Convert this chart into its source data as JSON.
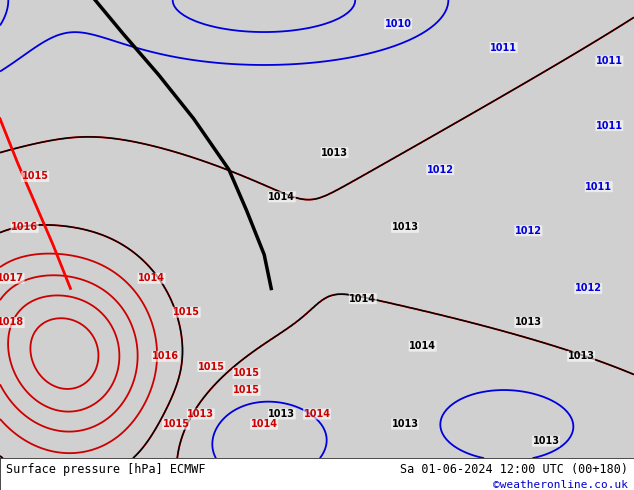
{
  "title_left": "Surface pressure [hPa] ECMWF",
  "title_right": "Sa 01-06-2024 12:00 UTC (00+180)",
  "credit": "©weatheronline.co.uk",
  "fig_width": 6.34,
  "fig_height": 4.9,
  "dpi": 100,
  "title_fontsize": 8.5,
  "credit_fontsize": 8,
  "credit_color": "#0000cc",
  "land_color": "#b8e090",
  "sea_color": "#d8d8d8",
  "border_color": "#000000",
  "lon_min": 2.5,
  "lon_max": 20.5,
  "lat_min": 43.5,
  "lat_max": 57.0,
  "isobar_labels_blue": [
    [
      13.8,
      56.3,
      "1010"
    ],
    [
      16.8,
      55.6,
      "1011"
    ],
    [
      19.8,
      55.2,
      "1011"
    ],
    [
      19.8,
      53.3,
      "1011"
    ],
    [
      19.5,
      51.5,
      "1011"
    ],
    [
      17.5,
      50.2,
      "1012"
    ],
    [
      19.2,
      48.5,
      "1012"
    ],
    [
      15.0,
      52.0,
      "1012"
    ]
  ],
  "isobar_labels_black": [
    [
      12.0,
      52.5,
      "1013"
    ],
    [
      14.0,
      50.3,
      "1013"
    ],
    [
      17.5,
      47.5,
      "1013"
    ],
    [
      19.0,
      46.5,
      "1013"
    ],
    [
      10.5,
      51.2,
      "1014"
    ],
    [
      12.8,
      48.2,
      "1014"
    ],
    [
      14.5,
      46.8,
      "1014"
    ],
    [
      10.5,
      44.8,
      "1013"
    ],
    [
      14.0,
      44.5,
      "1013"
    ],
    [
      18.0,
      44.0,
      "1013"
    ]
  ],
  "isobar_labels_red": [
    [
      3.5,
      51.8,
      "1015"
    ],
    [
      3.2,
      50.3,
      "1016"
    ],
    [
      2.8,
      48.8,
      "1017"
    ],
    [
      2.8,
      47.5,
      "1018"
    ],
    [
      7.8,
      47.8,
      "1015"
    ],
    [
      7.2,
      46.5,
      "1016"
    ],
    [
      6.8,
      48.8,
      "1014"
    ],
    [
      8.5,
      46.2,
      "1015"
    ],
    [
      9.5,
      45.5,
      "1015"
    ],
    [
      8.2,
      44.8,
      "1013"
    ],
    [
      10.0,
      44.5,
      "1014"
    ],
    [
      11.5,
      44.8,
      "1014"
    ],
    [
      9.5,
      46.0,
      "1015"
    ],
    [
      7.5,
      44.5,
      "1015"
    ]
  ],
  "pressure_field_centers": [
    {
      "lon": 5.5,
      "lat": 47.0,
      "value": 1018.5,
      "spread_lon": 3.0,
      "spread_lat": 3.5
    },
    {
      "lon": 3.0,
      "lat": 50.5,
      "value": 1016.0,
      "spread_lon": 2.5,
      "spread_lat": 3.0
    },
    {
      "lon": 7.5,
      "lat": 53.5,
      "value": 1012.0,
      "spread_lon": 4.0,
      "spread_lat": 3.0
    },
    {
      "lon": 18.0,
      "lat": 54.0,
      "value": 1011.0,
      "spread_lon": 5.0,
      "spread_lat": 4.0
    },
    {
      "lon": 13.0,
      "lat": 52.0,
      "value": 1013.0,
      "spread_lon": 6.0,
      "spread_lat": 5.0
    },
    {
      "lon": 17.0,
      "lat": 47.0,
      "value": 1013.5,
      "spread_lon": 5.0,
      "spread_lat": 4.0
    },
    {
      "lon": 12.0,
      "lat": 45.0,
      "value": 1013.0,
      "spread_lon": 4.0,
      "spread_lat": 2.5
    },
    {
      "lon": 11.5,
      "lat": 44.2,
      "value": 1012.5,
      "spread_lon": 2.5,
      "spread_lat": 1.5
    }
  ],
  "black_front_x": [
    5.2,
    6.0,
    7.0,
    8.0,
    9.0,
    9.5,
    10.0,
    10.2
  ],
  "black_front_y": [
    57.0,
    56.0,
    54.8,
    53.5,
    52.0,
    50.8,
    49.5,
    48.5
  ],
  "red_front_x": [
    2.5,
    3.0,
    3.5,
    4.0,
    4.5
  ],
  "red_front_y": [
    53.5,
    52.2,
    51.0,
    49.8,
    48.5
  ]
}
